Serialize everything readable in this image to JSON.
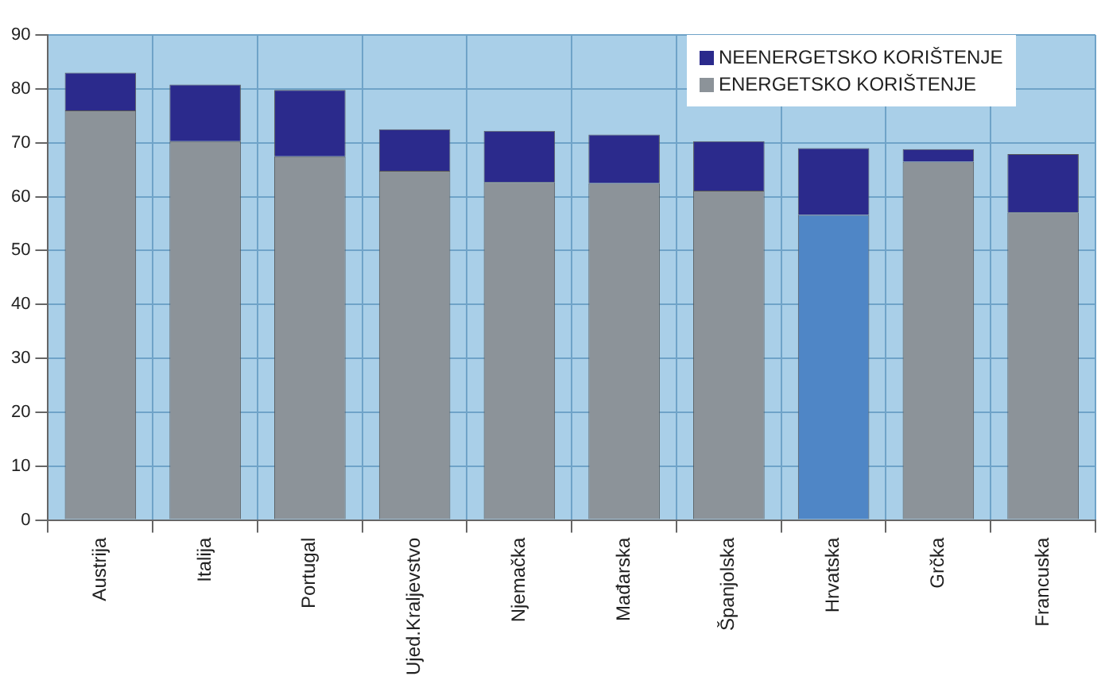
{
  "chart_data": {
    "type": "bar",
    "stacked": true,
    "categories": [
      "Austrija",
      "Italija",
      "Portugal",
      "Ujed.Kraljevstvo",
      "Njemačka",
      "Mađarska",
      "Španjolska",
      "Hrvatska",
      "Grčka",
      "Francuska"
    ],
    "series": [
      {
        "name": "ENERGETSKO KORIŠTENJE",
        "color": "#8c9399",
        "colors": [
          "#8c9399",
          "#8c9399",
          "#8c9399",
          "#8c9399",
          "#8c9399",
          "#8c9399",
          "#8c9399",
          "#4f86c6",
          "#8c9399",
          "#8c9399"
        ],
        "values": [
          76,
          70.3,
          67.5,
          64.8,
          62.7,
          62.5,
          61.1,
          56.6,
          66.5,
          57.1
        ]
      },
      {
        "name": "NEENERGETSKO KORIŠTENJE",
        "color": "#2b2a8c",
        "values": [
          7,
          10.5,
          12.3,
          7.7,
          9.5,
          9,
          9.2,
          12.4,
          2.3,
          10.8
        ]
      }
    ],
    "bands": [
      {
        "axis": "y",
        "from": 0,
        "to": 90,
        "color": "#a9cfe8"
      }
    ],
    "ylim": [
      0,
      90
    ],
    "yticks": [
      0,
      10,
      20,
      30,
      40,
      50,
      60,
      70,
      80,
      90
    ],
    "grid": true,
    "legend": "top right"
  }
}
